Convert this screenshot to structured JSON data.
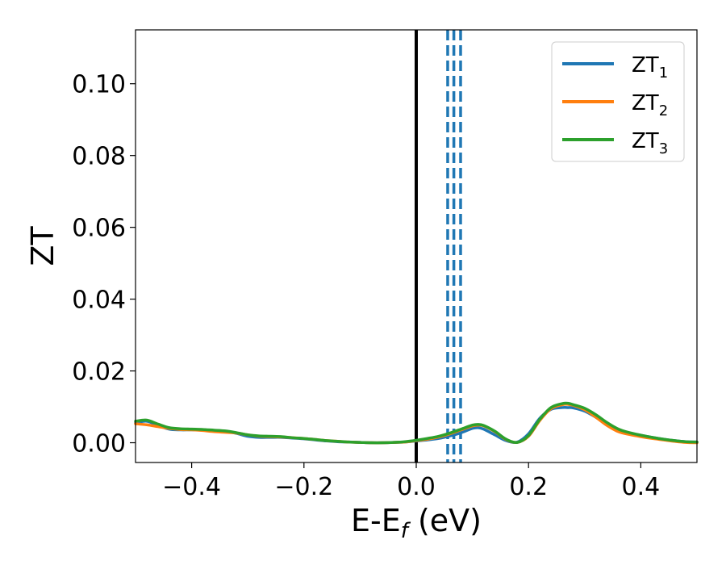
{
  "chart_data": {
    "type": "line",
    "xlabel": "E-E",
    "xlabel_subscript": "f",
    "xlabel_unit": " (eV)",
    "ylabel": "ZT",
    "xlim": [
      -0.5,
      0.5
    ],
    "ylim": [
      -0.0055,
      0.115
    ],
    "xticks": [
      {
        "value": -0.4,
        "label": "−0.4"
      },
      {
        "value": -0.2,
        "label": "−0.2"
      },
      {
        "value": 0.0,
        "label": "0.0"
      },
      {
        "value": 0.2,
        "label": "0.2"
      },
      {
        "value": 0.4,
        "label": "0.4"
      }
    ],
    "yticks": [
      {
        "value": 0.0,
        "label": "0.00"
      },
      {
        "value": 0.02,
        "label": "0.02"
      },
      {
        "value": 0.04,
        "label": "0.04"
      },
      {
        "value": 0.06,
        "label": "0.06"
      },
      {
        "value": 0.08,
        "label": "0.08"
      },
      {
        "value": 0.1,
        "label": "0.10"
      }
    ],
    "grid": false,
    "legend_position": "top-right",
    "vertical_lines": [
      {
        "x": 0.0,
        "color": "#000000",
        "style": "solid"
      },
      {
        "x": 0.056,
        "color": "#1f77b4",
        "style": "dashed"
      },
      {
        "x": 0.067,
        "color": "#1f77b4",
        "style": "dashed"
      },
      {
        "x": 0.079,
        "color": "#1f77b4",
        "style": "dashed"
      }
    ],
    "series": [
      {
        "name": "ZT",
        "subscript": "1",
        "color": "#1f77b4",
        "x": [
          -0.5,
          -0.48,
          -0.46,
          -0.44,
          -0.42,
          -0.4,
          -0.38,
          -0.36,
          -0.34,
          -0.32,
          -0.3,
          -0.28,
          -0.26,
          -0.24,
          -0.22,
          -0.2,
          -0.18,
          -0.16,
          -0.14,
          -0.12,
          -0.1,
          -0.08,
          -0.06,
          -0.04,
          -0.02,
          0.0,
          0.02,
          0.04,
          0.06,
          0.08,
          0.1,
          0.11,
          0.12,
          0.14,
          0.16,
          0.18,
          0.2,
          0.22,
          0.24,
          0.26,
          0.27,
          0.28,
          0.3,
          0.32,
          0.34,
          0.36,
          0.38,
          0.4,
          0.42,
          0.44,
          0.46,
          0.48,
          0.5
        ],
        "y": [
          0.0055,
          0.006,
          0.0048,
          0.0038,
          0.0036,
          0.0036,
          0.0035,
          0.0034,
          0.0032,
          0.0026,
          0.0018,
          0.0015,
          0.0015,
          0.0015,
          0.0013,
          0.0011,
          0.0008,
          0.0005,
          0.0003,
          0.0002,
          0.0001,
          0.0,
          0.0,
          0.0001,
          0.0002,
          0.0005,
          0.0008,
          0.0012,
          0.0019,
          0.0028,
          0.004,
          0.0042,
          0.0038,
          0.0022,
          0.0006,
          0.0002,
          0.0025,
          0.0068,
          0.0093,
          0.0098,
          0.0098,
          0.0097,
          0.0088,
          0.0071,
          0.0052,
          0.0036,
          0.0027,
          0.0021,
          0.0015,
          0.001,
          0.0006,
          0.0003,
          0.0002
        ]
      },
      {
        "name": "ZT",
        "subscript": "2",
        "color": "#ff7f0e",
        "x": [
          -0.5,
          -0.48,
          -0.46,
          -0.44,
          -0.42,
          -0.4,
          -0.38,
          -0.36,
          -0.34,
          -0.32,
          -0.3,
          -0.28,
          -0.26,
          -0.24,
          -0.22,
          -0.2,
          -0.18,
          -0.16,
          -0.14,
          -0.12,
          -0.1,
          -0.08,
          -0.06,
          -0.04,
          -0.02,
          0.0,
          0.02,
          0.04,
          0.06,
          0.08,
          0.1,
          0.11,
          0.12,
          0.14,
          0.16,
          0.18,
          0.2,
          0.22,
          0.24,
          0.26,
          0.27,
          0.28,
          0.3,
          0.32,
          0.34,
          0.36,
          0.38,
          0.4,
          0.42,
          0.44,
          0.46,
          0.48,
          0.5
        ],
        "y": [
          0.0053,
          0.005,
          0.0045,
          0.004,
          0.0037,
          0.0036,
          0.0034,
          0.0031,
          0.0029,
          0.0027,
          0.0022,
          0.0018,
          0.0017,
          0.0016,
          0.0014,
          0.0012,
          0.0009,
          0.0006,
          0.0004,
          0.0002,
          0.0001,
          0.0,
          0.0,
          0.0001,
          0.0002,
          0.0006,
          0.001,
          0.0016,
          0.0025,
          0.0036,
          0.0047,
          0.0049,
          0.0047,
          0.0031,
          0.0009,
          0.0001,
          0.0018,
          0.0062,
          0.0095,
          0.0106,
          0.0107,
          0.0104,
          0.0092,
          0.0071,
          0.0048,
          0.0031,
          0.0023,
          0.0017,
          0.0012,
          0.0008,
          0.0004,
          0.0001,
          0.0
        ]
      },
      {
        "name": "ZT",
        "subscript": "3",
        "color": "#2ca02c",
        "x": [
          -0.5,
          -0.48,
          -0.46,
          -0.44,
          -0.42,
          -0.4,
          -0.38,
          -0.36,
          -0.34,
          -0.32,
          -0.3,
          -0.28,
          -0.26,
          -0.24,
          -0.22,
          -0.2,
          -0.18,
          -0.16,
          -0.14,
          -0.12,
          -0.1,
          -0.08,
          -0.06,
          -0.04,
          -0.02,
          0.0,
          0.02,
          0.04,
          0.06,
          0.08,
          0.1,
          0.11,
          0.12,
          0.14,
          0.16,
          0.18,
          0.2,
          0.22,
          0.24,
          0.26,
          0.27,
          0.28,
          0.3,
          0.32,
          0.34,
          0.36,
          0.38,
          0.4,
          0.42,
          0.44,
          0.46,
          0.48,
          0.5
        ],
        "y": [
          0.006,
          0.0063,
          0.0052,
          0.0042,
          0.0039,
          0.0038,
          0.0037,
          0.0035,
          0.0033,
          0.0028,
          0.0022,
          0.0019,
          0.0018,
          0.0017,
          0.0014,
          0.0012,
          0.0009,
          0.0006,
          0.0004,
          0.0002,
          0.0001,
          0.0,
          0.0,
          0.0001,
          0.0003,
          0.0007,
          0.0012,
          0.0018,
          0.0027,
          0.0038,
          0.0049,
          0.0051,
          0.0048,
          0.0032,
          0.001,
          0.0001,
          0.002,
          0.0065,
          0.0098,
          0.0109,
          0.011,
          0.0106,
          0.0096,
          0.0078,
          0.0056,
          0.0038,
          0.0028,
          0.0021,
          0.0015,
          0.001,
          0.0006,
          0.0003,
          0.0002
        ]
      }
    ]
  }
}
